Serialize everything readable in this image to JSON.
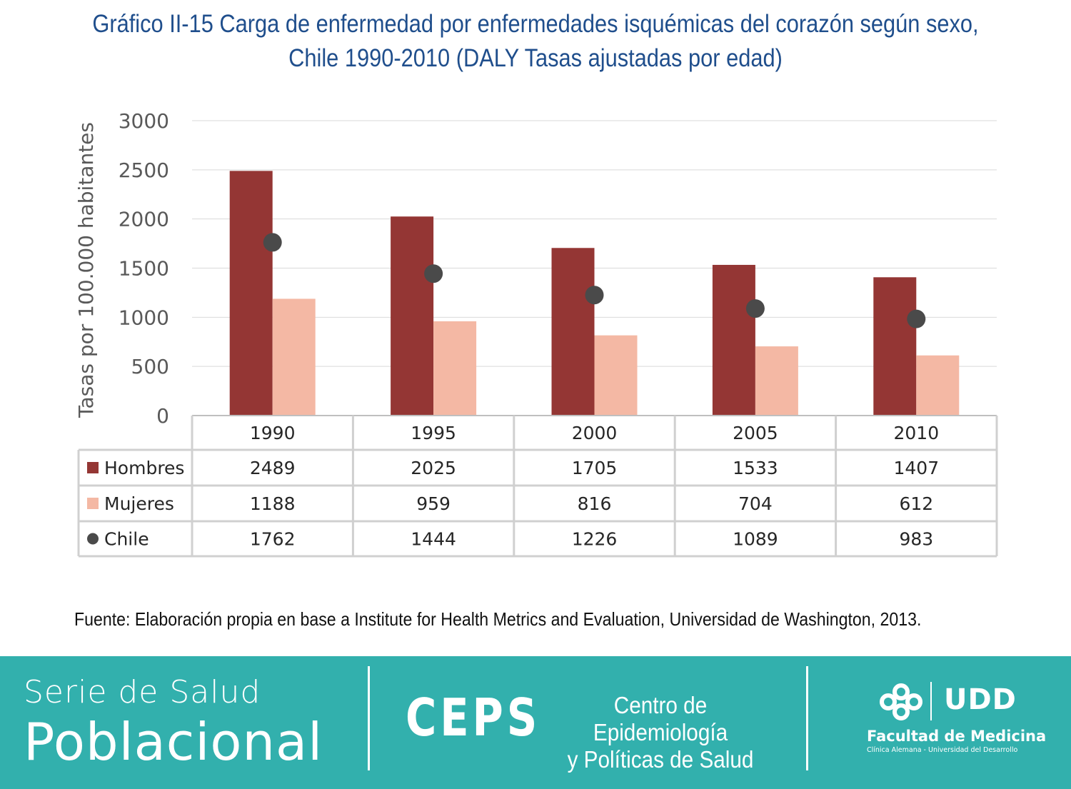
{
  "title_line1": "Gráfico II-15 Carga de enfermedad por enfermedades isquémicas del corazón según sexo,",
  "title_line2": "Chile 1990-2010 (DALY Tasas ajustadas por edad)",
  "chart_data": {
    "type": "bar",
    "categories": [
      "1990",
      "1995",
      "2000",
      "2005",
      "2010"
    ],
    "series": [
      {
        "name": "Hombres",
        "mark": "bar",
        "color": "#943634",
        "values": [
          2489,
          2025,
          1705,
          1533,
          1407
        ]
      },
      {
        "name": "Mujeres",
        "mark": "bar",
        "color": "#f4b8a4",
        "values": [
          1188,
          959,
          816,
          704,
          612
        ]
      },
      {
        "name": "Chile",
        "mark": "point",
        "color": "#4a4a4a",
        "values": [
          1762,
          1444,
          1226,
          1089,
          983
        ]
      }
    ],
    "ylabel": "Tasas por 100.000 habitantes",
    "ylim": [
      0,
      3000
    ],
    "yticks": [
      "0",
      "500",
      "1000",
      "1500",
      "2000",
      "2500",
      "3000"
    ],
    "grid": true,
    "data_table": true
  },
  "source": "Fuente: Elaboración propia en base a Institute for Health Metrics and Evaluation, Universidad de Washington, 2013.",
  "footer": {
    "serie_line1": "Serie de Salud",
    "serie_line2": "Poblacional",
    "ceps": "CEPS",
    "ceps_line1": "Centro de Epidemiología",
    "ceps_line2": "y Políticas de Salud",
    "udd": "UDD",
    "faculty": "Facultad de Medicina",
    "faculty_sub": "Clínica Alemana - Universidad del Desarrollo",
    "bg_color": "#32b0ad"
  }
}
